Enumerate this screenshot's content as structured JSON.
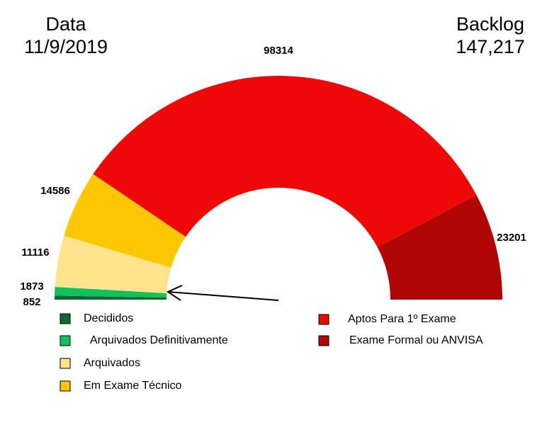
{
  "chart_data": {
    "type": "half-donut",
    "date_label": "Data",
    "date": "11/9/2019",
    "backlog_label": "Backlog",
    "backlog": "147,217",
    "categories": [
      "Decididos",
      "Arquivados Definitivamente",
      "Arquivados",
      "Em Exame Técnico",
      "Aptos Para 1º Exame",
      "Exame Formal ou ANVISA"
    ],
    "values": [
      852,
      1873,
      11116,
      14586,
      98314,
      23201
    ],
    "colors": [
      "#0b6b2e",
      "#14c05c",
      "#fde48c",
      "#fdc700",
      "#ee0808",
      "#b20505"
    ]
  }
}
